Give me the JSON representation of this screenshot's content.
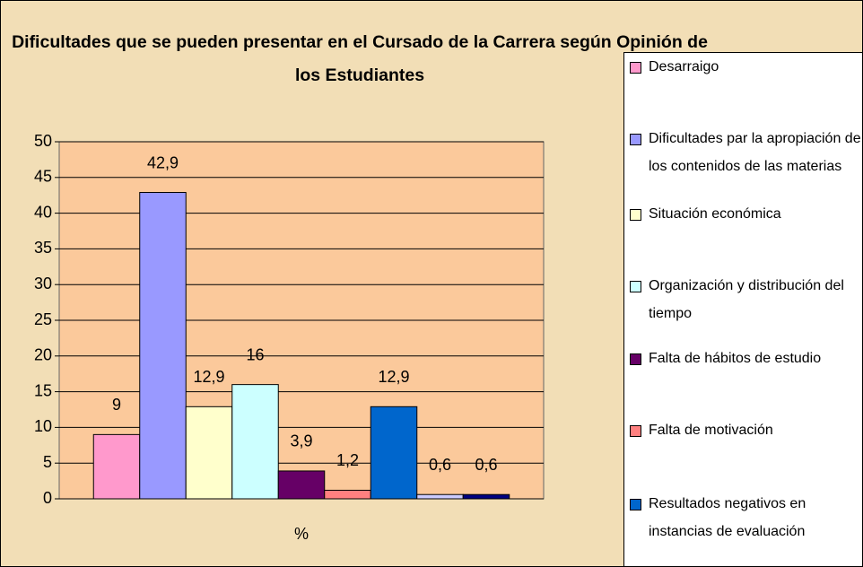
{
  "chart_data": {
    "type": "bar",
    "title": "Dificultades que se pueden presentar en el Cursado de la Carrera según Opinión de los Estudiantes",
    "categories": [
      "%"
    ],
    "series": [
      {
        "name": "Desarraigo",
        "color": "#ff99cc",
        "values": [
          9
        ]
      },
      {
        "name": "Dificultades par la apropiación de los contenidos de las materias",
        "color": "#9999ff",
        "values": [
          42.9
        ],
        "value_labels": [
          "42,9"
        ]
      },
      {
        "name": "Situación económica",
        "color": "#ffffcc",
        "values": [
          12.9
        ],
        "value_labels": [
          "12,9"
        ]
      },
      {
        "name": "Organización y distribución del tiempo",
        "color": "#ccffff",
        "values": [
          16
        ]
      },
      {
        "name": "Falta de hábitos de estudio",
        "color": "#660066",
        "values": [
          3.9
        ],
        "value_labels": [
          "3,9"
        ]
      },
      {
        "name": "Falta de motivación",
        "color": "#ff8080",
        "values": [
          1.2
        ],
        "value_labels": [
          "1,2"
        ]
      },
      {
        "name": "Resultados negativos en instancias de evaluación",
        "color": "#0066cc",
        "values": [
          12.9
        ],
        "value_labels": [
          "12,9"
        ]
      },
      {
        "name": null,
        "color": "#ccccff",
        "values": [
          0.6
        ],
        "value_labels": [
          "0,6"
        ]
      },
      {
        "name": null,
        "color": "#000080",
        "values": [
          0.6
        ],
        "value_labels": [
          "0,6"
        ]
      }
    ],
    "ylim": [
      0,
      50
    ],
    "yticks": [
      0,
      5,
      10,
      15,
      20,
      25,
      30,
      35,
      40,
      45,
      50
    ],
    "grid": true,
    "legend": "right",
    "plot_color": "#fbc99b"
  }
}
